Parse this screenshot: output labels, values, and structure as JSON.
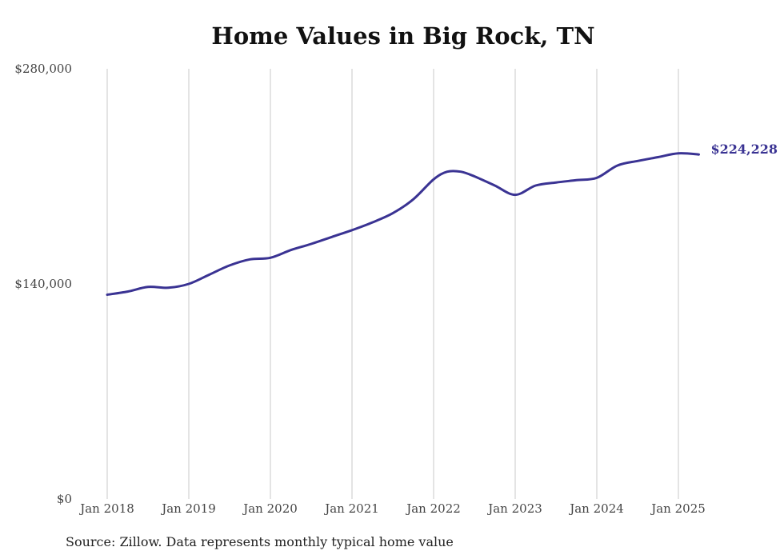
{
  "colors": {
    "line": "#3a3393",
    "grid": "#c8c8c8",
    "text": "#222222"
  },
  "source": "Source: Zillow. Data represents monthly typical home value",
  "chart_data": {
    "type": "line",
    "title": "Home Values in Big Rock, TN",
    "xlabel": "",
    "ylabel": "",
    "ylim": [
      0,
      280000
    ],
    "xlim": [
      "2018-01",
      "2025-12"
    ],
    "yticks": [
      0,
      140000,
      280000
    ],
    "ytick_labels": [
      "$0",
      "$140,000",
      "$280,000"
    ],
    "xticks": [
      "2018-01",
      "2019-01",
      "2020-01",
      "2021-01",
      "2022-01",
      "2023-01",
      "2024-01",
      "2025-01"
    ],
    "xtick_labels": [
      "Jan 2018",
      "Jan 2019",
      "Jan 2020",
      "Jan 2021",
      "Jan 2022",
      "Jan 2023",
      "Jan 2024",
      "Jan 2025"
    ],
    "grid": "vertical",
    "end_label": "$224,228",
    "series": [
      {
        "name": "",
        "x": [
          "2018-01",
          "2018-04",
          "2018-07",
          "2018-10",
          "2019-01",
          "2019-04",
          "2019-07",
          "2019-10",
          "2020-01",
          "2020-04",
          "2020-07",
          "2020-10",
          "2021-01",
          "2021-04",
          "2021-07",
          "2021-10",
          "2022-01",
          "2022-03",
          "2022-05",
          "2022-07",
          "2022-10",
          "2023-01",
          "2023-04",
          "2023-07",
          "2023-10",
          "2024-01",
          "2024-04",
          "2024-07",
          "2024-10",
          "2025-01",
          "2025-04"
        ],
        "values": [
          133000,
          135000,
          138000,
          137500,
          140000,
          146000,
          152000,
          156000,
          157000,
          162000,
          166000,
          170500,
          175000,
          180000,
          186000,
          195000,
          208000,
          213000,
          213000,
          210000,
          204000,
          198000,
          204000,
          206000,
          207500,
          209000,
          217000,
          220000,
          222500,
          225000,
          224228
        ]
      }
    ]
  }
}
